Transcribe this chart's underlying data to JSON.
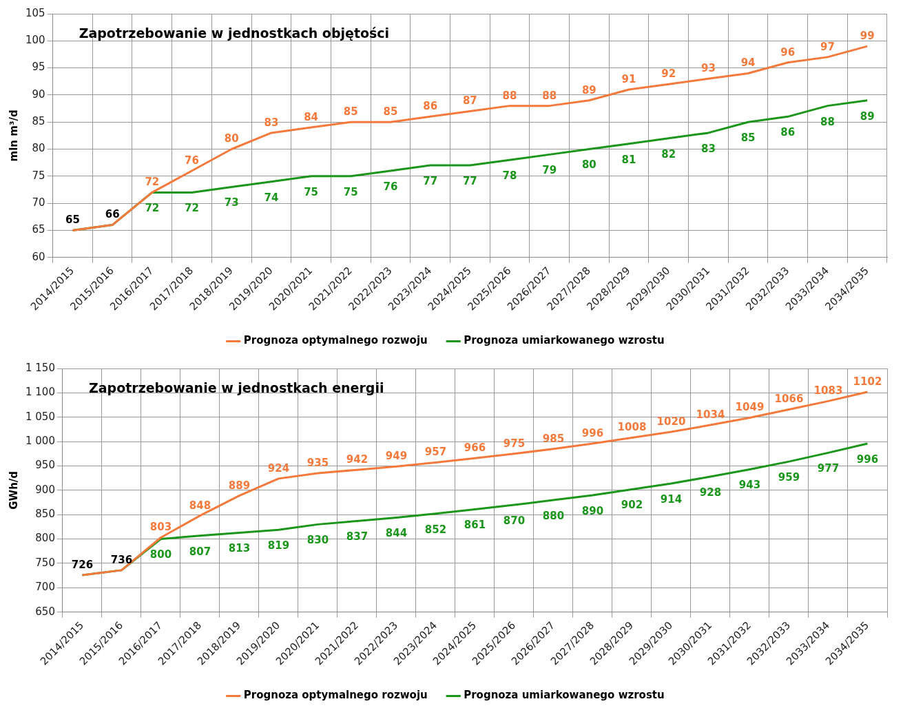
{
  "chart_data": [
    {
      "type": "line",
      "title": "Zapotrzebowanie w jednostkach objętości",
      "ylabel": "mln m³/d",
      "categories": [
        "2014/2015",
        "2015/2016",
        "2016/2017",
        "2017/2018",
        "2018/2019",
        "2019/2020",
        "2020/2021",
        "2021/2022",
        "2022/2023",
        "2023/2024",
        "2024/2025",
        "2025/2026",
        "2026/2027",
        "2027/2028",
        "2028/2029",
        "2029/2030",
        "2030/2031",
        "2031/2032",
        "2032/2033",
        "2033/2034",
        "2034/2035"
      ],
      "series": [
        {
          "name": "Prognoza optymalnego rozwoju",
          "color": "#f4793b",
          "values": [
            65,
            66,
            72,
            76,
            80,
            83,
            84,
            85,
            85,
            86,
            87,
            88,
            88,
            89,
            91,
            92,
            93,
            94,
            96,
            97,
            99
          ],
          "value_labels": [
            null,
            null,
            "72",
            "76",
            "80",
            "83",
            "84",
            "85",
            "85",
            "86",
            "87",
            "88",
            "88",
            "89",
            "91",
            "92",
            "93",
            "94",
            "96",
            "97",
            "99"
          ]
        },
        {
          "name": "Prognoza umiarkowanego wzrostu",
          "color": "#1a961a",
          "values": [
            65,
            66,
            72,
            72,
            73,
            74,
            75,
            75,
            76,
            77,
            77,
            78,
            79,
            80,
            81,
            82,
            83,
            85,
            86,
            88,
            89
          ],
          "value_labels": [
            null,
            null,
            "72",
            "72",
            "73",
            "74",
            "75",
            "75",
            "76",
            "77",
            "77",
            "78",
            "79",
            "80",
            "81",
            "82",
            "83",
            "85",
            "86",
            "88",
            "89"
          ]
        }
      ],
      "annotations": [
        {
          "text": "65",
          "x": "2014/2015",
          "y": 65
        },
        {
          "text": "66",
          "x": "2015/2016",
          "y": 66
        }
      ],
      "ylim": [
        60,
        105
      ],
      "yticks": [
        60,
        65,
        70,
        75,
        80,
        85,
        90,
        95,
        100,
        105
      ],
      "grid": true,
      "legend": "bottom",
      "marker": "none"
    },
    {
      "type": "line",
      "title": "Zapotrzebowanie w jednostkach energii",
      "ylabel": "GWh/d",
      "categories": [
        "2014/2015",
        "2015/2016",
        "2016/2017",
        "2017/2018",
        "2018/2019",
        "2019/2020",
        "2020/2021",
        "2021/2022",
        "2022/2023",
        "2023/2024",
        "2024/2025",
        "2025/2026",
        "2026/2027",
        "2027/2028",
        "2028/2029",
        "2029/2030",
        "2030/2031",
        "2031/2032",
        "2032/2033",
        "2033/2034",
        "2034/2035"
      ],
      "series": [
        {
          "name": "Prognoza optymalnego rozwoju",
          "color": "#f4793b",
          "values": [
            726,
            736,
            803,
            848,
            889,
            924,
            935,
            942,
            949,
            957,
            966,
            975,
            985,
            996,
            1008,
            1020,
            1034,
            1049,
            1066,
            1083,
            1102
          ],
          "value_labels": [
            null,
            null,
            "803",
            "848",
            "889",
            "924",
            "935",
            "942",
            "949",
            "957",
            "966",
            "975",
            "985",
            "996",
            "1008",
            "1020",
            "1034",
            "1049",
            "1066",
            "1083",
            "1102"
          ]
        },
        {
          "name": "Prognoza umiarkowanego wzrostu",
          "color": "#1a961a",
          "values": [
            726,
            736,
            800,
            807,
            813,
            819,
            830,
            837,
            844,
            852,
            861,
            870,
            880,
            890,
            902,
            914,
            928,
            943,
            959,
            977,
            996
          ],
          "value_labels": [
            null,
            null,
            "800",
            "807",
            "813",
            "819",
            "830",
            "837",
            "844",
            "852",
            "861",
            "870",
            "880",
            "890",
            "902",
            "914",
            "928",
            "943",
            "959",
            "977",
            "996"
          ]
        }
      ],
      "annotations": [
        {
          "text": "726",
          "x": "2014/2015",
          "y": 726
        },
        {
          "text": "736",
          "x": "2015/2016",
          "y": 736
        }
      ],
      "ylim": [
        650,
        1150
      ],
      "yticks": [
        650,
        700,
        750,
        800,
        850,
        900,
        950,
        {
          "value": 1000,
          "label": "1 000"
        },
        {
          "value": 1050,
          "label": "1 050"
        },
        {
          "value": 1100,
          "label": "1 100"
        },
        {
          "value": 1150,
          "label": "1 150"
        }
      ],
      "grid": true,
      "legend": "bottom",
      "marker": "none"
    }
  ]
}
